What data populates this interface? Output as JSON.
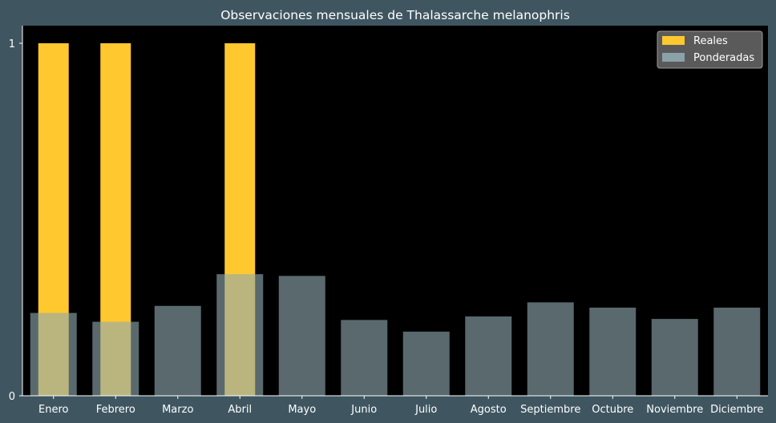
{
  "chart_data": {
    "type": "bar",
    "title": "Observaciones mensuales de Thalassarche melanophris",
    "xlabel": "",
    "ylabel": "",
    "categories": [
      "Enero",
      "Febrero",
      "Marzo",
      "Abril",
      "Mayo",
      "Junio",
      "Julio",
      "Agosto",
      "Septiembre",
      "Octubre",
      "Noviembre",
      "Diciembre"
    ],
    "yticks": [
      "0",
      "1"
    ],
    "ylim": [
      0,
      1.05
    ],
    "grid": false,
    "legend_position": "top-right",
    "series": [
      {
        "name": "Reales",
        "color": "#ffc82e",
        "values": [
          1,
          1,
          0,
          1,
          0,
          0,
          0,
          0,
          0,
          0,
          0,
          0
        ]
      },
      {
        "name": "Ponderadas",
        "color": "#8faab0",
        "values": [
          0.235,
          0.21,
          0.255,
          0.345,
          0.34,
          0.215,
          0.182,
          0.225,
          0.265,
          0.25,
          0.218,
          0.25
        ]
      }
    ]
  }
}
